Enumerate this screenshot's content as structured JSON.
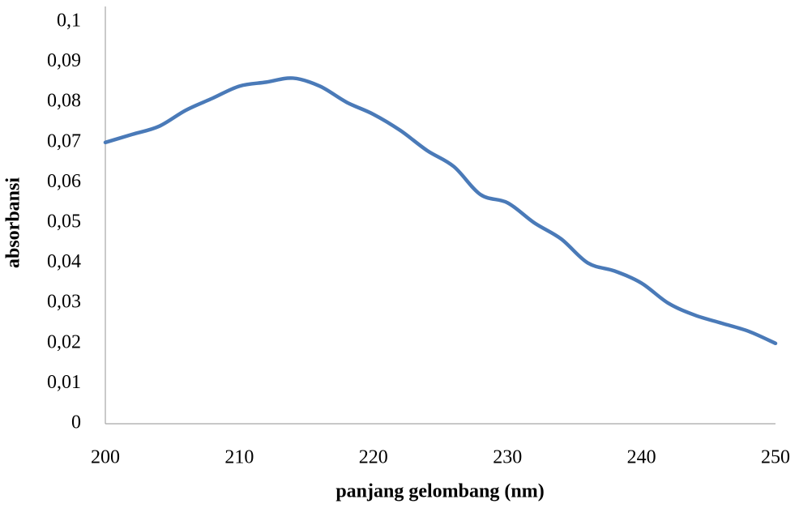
{
  "chart_data": {
    "type": "line",
    "x_label": "panjang gelombang (nm)",
    "y_label": "absorbansi",
    "x": [
      200,
      202,
      204,
      206,
      208,
      210,
      212,
      214,
      216,
      218,
      220,
      222,
      224,
      226,
      228,
      230,
      232,
      234,
      236,
      238,
      240,
      242,
      244,
      246,
      248,
      250
    ],
    "series": [
      {
        "color": "#4a7ab8",
        "values": [
          0.07,
          0.072,
          0.074,
          0.078,
          0.081,
          0.084,
          0.085,
          0.086,
          0.084,
          0.08,
          0.077,
          0.073,
          0.068,
          0.064,
          0.057,
          0.055,
          0.05,
          0.046,
          0.04,
          0.038,
          0.035,
          0.03,
          0.027,
          0.025,
          0.023,
          0.02
        ]
      }
    ],
    "xlim": [
      200,
      250
    ],
    "xticks": [
      200,
      210,
      220,
      230,
      240,
      250
    ],
    "ylim": [
      0,
      0.1
    ],
    "yticks": [
      0,
      {
        "value": 0.01,
        "label": "0,01"
      },
      {
        "value": 0.02,
        "label": "0,02"
      },
      {
        "value": 0.03,
        "label": "0,03"
      },
      {
        "value": 0.04,
        "label": "0,04"
      },
      {
        "value": 0.05,
        "label": "0,05"
      },
      {
        "value": 0.06,
        "label": "0,06"
      },
      {
        "value": 0.07,
        "label": "0,07"
      },
      {
        "value": 0.08,
        "label": "0,08"
      },
      {
        "value": 0.09,
        "label": "0,09"
      },
      {
        "value": 0.1,
        "label": "0,1"
      }
    ],
    "grid": false
  }
}
